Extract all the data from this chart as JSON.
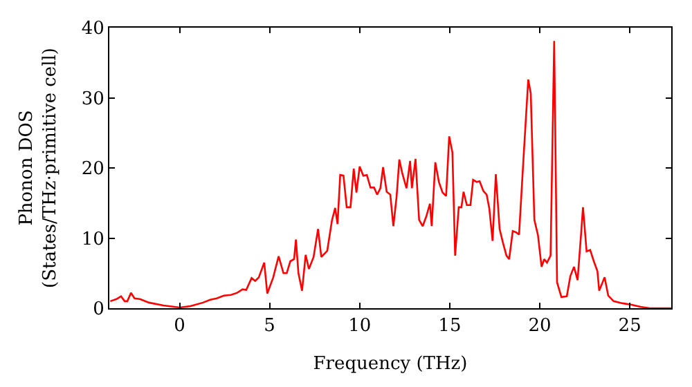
{
  "chart_data": {
    "type": "line",
    "xlabel": "Frequency (THz)",
    "ylabel": "Phonon DOS\n(States/THz·primitive cell)",
    "x": [
      -3.85,
      -3.5,
      -3.25,
      -3.05,
      -2.9,
      -2.7,
      -2.5,
      -2.2,
      -1.7,
      -0.9,
      0.0,
      0.6,
      1.3,
      1.7,
      2.06,
      2.46,
      2.85,
      3.2,
      3.5,
      3.7,
      4.0,
      4.2,
      4.4,
      4.7,
      4.87,
      5.2,
      5.5,
      5.77,
      5.95,
      6.15,
      6.36,
      6.46,
      6.6,
      6.8,
      7.0,
      7.18,
      7.44,
      7.69,
      7.87,
      8.2,
      8.46,
      8.64,
      8.77,
      8.92,
      9.1,
      9.28,
      9.49,
      9.67,
      9.82,
      10.0,
      10.2,
      10.4,
      10.6,
      10.8,
      10.97,
      11.15,
      11.3,
      11.5,
      11.7,
      11.87,
      12.05,
      12.2,
      12.36,
      12.6,
      12.8,
      12.9,
      13.1,
      13.3,
      13.5,
      13.7,
      13.9,
      14.0,
      14.2,
      14.4,
      14.6,
      14.8,
      14.97,
      15.15,
      15.3,
      15.5,
      15.65,
      15.77,
      15.95,
      16.15,
      16.3,
      16.5,
      16.66,
      16.87,
      17.05,
      17.2,
      17.38,
      17.56,
      17.77,
      17.95,
      18.15,
      18.3,
      18.5,
      18.7,
      18.85,
      19.1,
      19.36,
      19.5,
      19.7,
      19.9,
      20.1,
      20.25,
      20.4,
      20.6,
      20.8,
      20.96,
      21.2,
      21.5,
      21.7,
      21.9,
      22.1,
      22.3,
      22.4,
      22.6,
      22.8,
      23.0,
      23.2,
      23.3,
      23.6,
      23.8,
      24.1,
      24.6,
      25.1,
      25.6,
      26.1,
      27.3
    ],
    "series": [
      {
        "color": "#ff0000",
        "values": [
          1.0,
          1.3,
          1.7,
          1.0,
          1.0,
          2.2,
          1.4,
          1.3,
          0.8,
          0.4,
          0.1,
          0.3,
          0.8,
          1.2,
          1.4,
          1.8,
          1.9,
          2.2,
          2.7,
          2.6,
          4.3,
          3.9,
          4.4,
          6.5,
          2.1,
          4.4,
          7.4,
          5.0,
          5.0,
          6.7,
          7.0,
          9.8,
          5.0,
          2.5,
          7.6,
          5.6,
          7.3,
          11.3,
          7.3,
          8.2,
          12.5,
          14.3,
          12.0,
          19.0,
          18.9,
          14.4,
          14.4,
          19.9,
          16.5,
          20.2,
          18.9,
          19.0,
          17.2,
          17.2,
          16.2,
          17.1,
          20.1,
          16.6,
          16.2,
          11.7,
          15.9,
          21.2,
          19.3,
          17.1,
          21.0,
          17.1,
          21.3,
          12.6,
          11.7,
          13.1,
          14.9,
          11.7,
          20.8,
          18.0,
          16.5,
          16.0,
          24.5,
          22.2,
          7.5,
          14.4,
          14.4,
          16.6,
          14.7,
          14.7,
          18.3,
          18.0,
          18.1,
          16.7,
          16.2,
          14.2,
          9.6,
          19.1,
          11.3,
          9.4,
          7.5,
          7.0,
          11.0,
          10.8,
          10.5,
          21.5,
          32.6,
          30.6,
          12.6,
          10.4,
          5.9,
          7.0,
          6.5,
          7.5,
          38.1,
          3.7,
          1.6,
          1.7,
          4.6,
          5.9,
          4.0,
          10.8,
          14.4,
          8.1,
          8.3,
          6.7,
          5.3,
          2.5,
          4.4,
          1.8,
          1.0,
          0.7,
          0.5,
          0.2,
          0.0,
          0.0
        ]
      }
    ],
    "xlim": [
      -3.9,
      27.3
    ],
    "xticks": [
      0,
      5,
      10,
      15,
      20,
      25
    ],
    "ylim": [
      0,
      40
    ],
    "yticks": [
      0,
      10,
      20,
      30,
      40
    ],
    "marker": "none",
    "line_style": "solid"
  }
}
